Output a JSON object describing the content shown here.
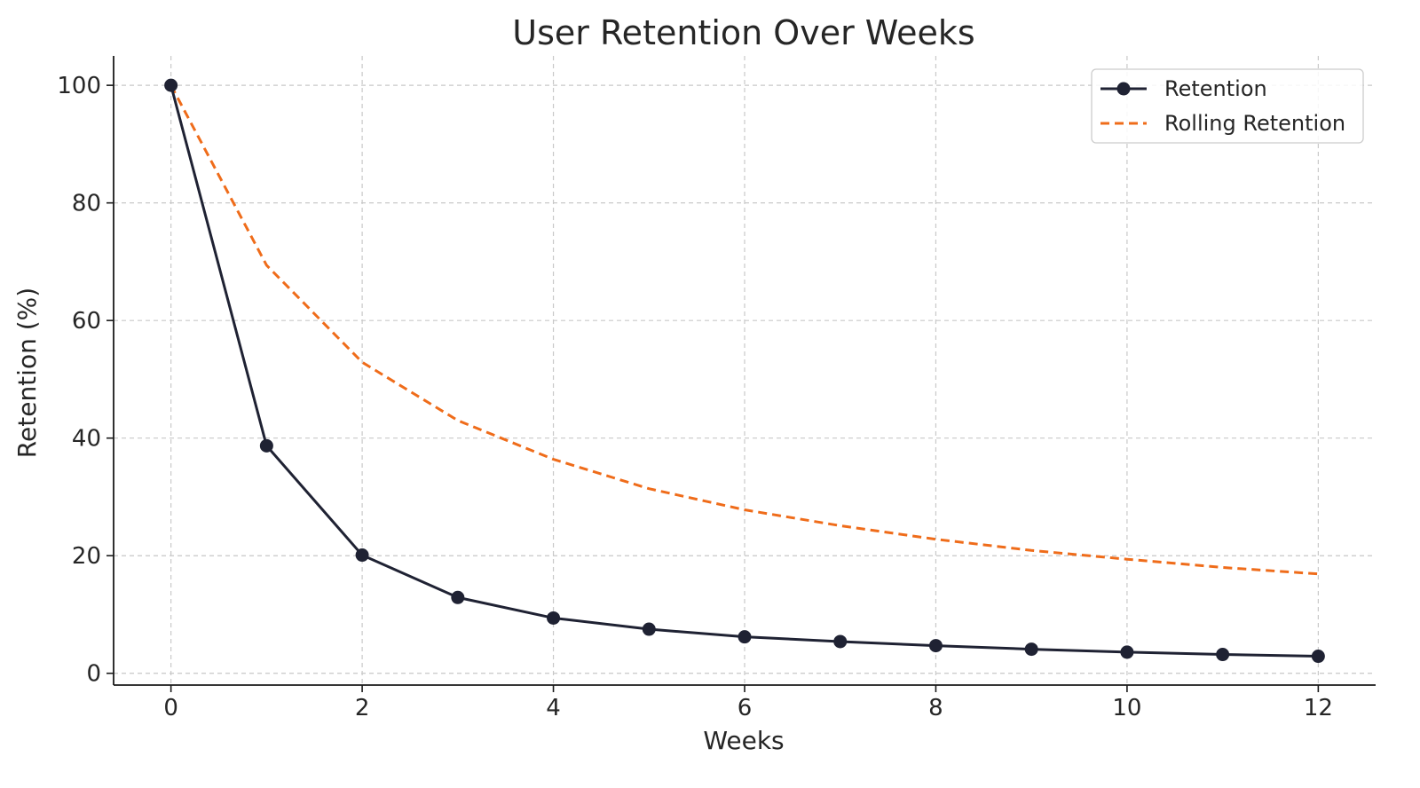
{
  "chart_data": {
    "type": "line",
    "title": "User Retention Over Weeks",
    "xlabel": "Weeks",
    "ylabel": "Retention (%)",
    "x": [
      0,
      1,
      2,
      3,
      4,
      5,
      6,
      7,
      8,
      9,
      10,
      11,
      12
    ],
    "xlim": [
      -0.6,
      12.6
    ],
    "ylim": [
      -2,
      105
    ],
    "xticks": [
      0,
      2,
      4,
      6,
      8,
      10,
      12
    ],
    "yticks": [
      0,
      20,
      40,
      60,
      80,
      100
    ],
    "grid": true,
    "legend_position": "top-right",
    "series": [
      {
        "name": "Retention",
        "color": "#1f2233",
        "style": "solid",
        "marker": "circle",
        "values": [
          100,
          38.7,
          20.1,
          12.9,
          9.4,
          7.5,
          6.2,
          5.4,
          4.7,
          4.1,
          3.6,
          3.2,
          2.9
        ]
      },
      {
        "name": "Rolling Retention",
        "color": "#ef6c1a",
        "style": "dashed",
        "marker": "none",
        "values": [
          100,
          69.4,
          52.9,
          43.0,
          36.4,
          31.4,
          27.8,
          25.1,
          22.8,
          20.9,
          19.4,
          18.0,
          16.9
        ]
      }
    ]
  }
}
